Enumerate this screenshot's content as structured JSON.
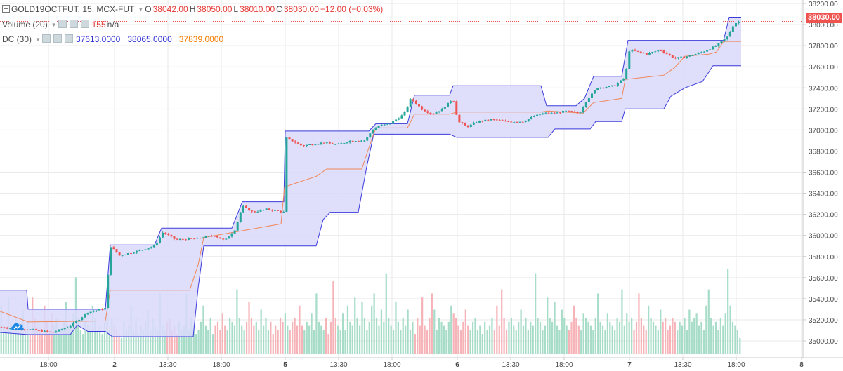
{
  "legend": {
    "symbol": "GOLD19OCTFUT, 15, MCX-FUT",
    "open_label": "O",
    "open_value": "38042.00",
    "high_label": "H",
    "high_value": "38050.00",
    "low_label": "L",
    "low_value": "38010.00",
    "close_label": "C",
    "close_value": "38030.00",
    "change": "−12.00 (−0.03%)",
    "volume_label": "Volume (20)",
    "volume_value": "155",
    "volume_na": "n/a",
    "dc_label": "DC (30)",
    "dc_lower": "37613.0000",
    "dc_upper": "38065.0000",
    "dc_basis": "37839.0000"
  },
  "last_price_tag": "38030.00",
  "colors": {
    "up": "#26a69a",
    "down": "#ef5350",
    "channel_line": "#3b3bdb",
    "channel_fill": "#d9d9fb",
    "basis": "#f0875a",
    "volume_up": "#a6dcc8",
    "volume_down": "#f6b3b8",
    "grid": "#e9e9e9",
    "axis_text": "#4a4a4a"
  },
  "chart_data": {
    "type": "candlestick",
    "ylim": [
      34940,
      38260
    ],
    "y_ticks": [
      "38200.00",
      "38000.00",
      "37800.00",
      "37600.00",
      "37400.00",
      "37200.00",
      "37000.00",
      "36800.00",
      "36600.00",
      "36400.00",
      "36200.00",
      "36000.00",
      "35800.00",
      "35600.00",
      "35400.00",
      "35200.00",
      "35000.00"
    ],
    "x_ticks": [
      "18:00",
      "2",
      "13:30",
      "18:00",
      "5",
      "13:30",
      "18:00",
      "6",
      "13:30",
      "18:00",
      "7",
      "13:30",
      "18:00",
      "8"
    ],
    "price_path": [
      [
        0,
        35130
      ],
      [
        40,
        35110
      ],
      [
        75,
        35080
      ],
      [
        100,
        35140
      ],
      [
        125,
        35270
      ],
      [
        150,
        35310
      ],
      [
        157,
        35900
      ],
      [
        170,
        35810
      ],
      [
        195,
        35850
      ],
      [
        220,
        35900
      ],
      [
        232,
        36030
      ],
      [
        250,
        35960
      ],
      [
        280,
        35970
      ],
      [
        305,
        36000
      ],
      [
        320,
        35950
      ],
      [
        335,
        36060
      ],
      [
        345,
        36280
      ],
      [
        360,
        36220
      ],
      [
        380,
        36250
      ],
      [
        404,
        36220
      ],
      [
        406,
        36930
      ],
      [
        430,
        36850
      ],
      [
        460,
        36880
      ],
      [
        480,
        36860
      ],
      [
        500,
        36900
      ],
      [
        520,
        36900
      ],
      [
        530,
        37000
      ],
      [
        540,
        37040
      ],
      [
        555,
        37060
      ],
      [
        575,
        37150
      ],
      [
        585,
        37300
      ],
      [
        600,
        37200
      ],
      [
        615,
        37150
      ],
      [
        630,
        37200
      ],
      [
        645,
        37300
      ],
      [
        652,
        37080
      ],
      [
        665,
        37030
      ],
      [
        680,
        37080
      ],
      [
        700,
        37100
      ],
      [
        720,
        37080
      ],
      [
        745,
        37080
      ],
      [
        760,
        37130
      ],
      [
        775,
        37160
      ],
      [
        790,
        37160
      ],
      [
        805,
        37180
      ],
      [
        825,
        37160
      ],
      [
        835,
        37280
      ],
      [
        850,
        37400
      ],
      [
        875,
        37420
      ],
      [
        890,
        37500
      ],
      [
        896,
        37760
      ],
      [
        920,
        37720
      ],
      [
        940,
        37760
      ],
      [
        960,
        37680
      ],
      [
        980,
        37700
      ],
      [
        1000,
        37740
      ],
      [
        1020,
        37800
      ],
      [
        1035,
        37880
      ],
      [
        1045,
        38010
      ],
      [
        1053,
        38030
      ]
    ],
    "donchian": {
      "upper": [
        [
          0,
          35480
        ],
        [
          38,
          35480
        ],
        [
          40,
          35300
        ],
        [
          150,
          35300
        ],
        [
          157,
          35910
        ],
        [
          220,
          35910
        ],
        [
          230,
          36070
        ],
        [
          330,
          36070
        ],
        [
          345,
          36320
        ],
        [
          404,
          36320
        ],
        [
          406,
          36990
        ],
        [
          525,
          36990
        ],
        [
          535,
          37060
        ],
        [
          580,
          37060
        ],
        [
          590,
          37330
        ],
        [
          640,
          37330
        ],
        [
          645,
          37420
        ],
        [
          770,
          37420
        ],
        [
          778,
          37230
        ],
        [
          820,
          37230
        ],
        [
          832,
          37300
        ],
        [
          845,
          37510
        ],
        [
          885,
          37510
        ],
        [
          894,
          37850
        ],
        [
          1030,
          37850
        ],
        [
          1038,
          38070
        ],
        [
          1055,
          38070
        ]
      ],
      "lower": [
        [
          0,
          35080
        ],
        [
          40,
          35060
        ],
        [
          100,
          35060
        ],
        [
          110,
          35150
        ],
        [
          125,
          35090
        ],
        [
          150,
          35090
        ],
        [
          160,
          35040
        ],
        [
          275,
          35040
        ],
        [
          282,
          35500
        ],
        [
          290,
          35900
        ],
        [
          450,
          35900
        ],
        [
          460,
          36150
        ],
        [
          470,
          36220
        ],
        [
          510,
          36220
        ],
        [
          522,
          36650
        ],
        [
          532,
          36960
        ],
        [
          560,
          36960
        ],
        [
          600,
          36960
        ],
        [
          640,
          36960
        ],
        [
          650,
          36930
        ],
        [
          780,
          36930
        ],
        [
          790,
          37010
        ],
        [
          840,
          37010
        ],
        [
          848,
          37080
        ],
        [
          885,
          37080
        ],
        [
          890,
          37200
        ],
        [
          945,
          37200
        ],
        [
          955,
          37320
        ],
        [
          975,
          37400
        ],
        [
          1000,
          37460
        ],
        [
          1015,
          37610
        ],
        [
          1055,
          37610
        ]
      ],
      "basis": [
        [
          0,
          35280
        ],
        [
          40,
          35180
        ],
        [
          150,
          35190
        ],
        [
          157,
          35480
        ],
        [
          270,
          35480
        ],
        [
          282,
          35720
        ],
        [
          290,
          35980
        ],
        [
          400,
          36110
        ],
        [
          405,
          36460
        ],
        [
          450,
          36560
        ],
        [
          465,
          36630
        ],
        [
          515,
          36630
        ],
        [
          525,
          36830
        ],
        [
          535,
          37020
        ],
        [
          580,
          37020
        ],
        [
          590,
          37150
        ],
        [
          640,
          37150
        ],
        [
          650,
          37170
        ],
        [
          770,
          37170
        ],
        [
          780,
          37180
        ],
        [
          830,
          37160
        ],
        [
          845,
          37260
        ],
        [
          885,
          37300
        ],
        [
          890,
          37480
        ],
        [
          945,
          37520
        ],
        [
          960,
          37590
        ],
        [
          975,
          37700
        ],
        [
          1010,
          37720
        ],
        [
          1020,
          37740
        ],
        [
          1030,
          37840
        ],
        [
          1055,
          37840
        ]
      ]
    },
    "volume": [
      120,
      70,
      60,
      140,
      80,
      50,
      90,
      60,
      70,
      110,
      60,
      80,
      50,
      140,
      90,
      70,
      60,
      50,
      120,
      80,
      60,
      100,
      70,
      90,
      50,
      60,
      80,
      130,
      70,
      60,
      100,
      190,
      90,
      60,
      50,
      80,
      70,
      60,
      120,
      90,
      60,
      70,
      50,
      80,
      110,
      60,
      90,
      70,
      60,
      50,
      40,
      80,
      60,
      70,
      120,
      60,
      90,
      50,
      70,
      60,
      80,
      110,
      60,
      90,
      70,
      60,
      150,
      70,
      60,
      80,
      90,
      60,
      70,
      50,
      80,
      60,
      70,
      150,
      60,
      90,
      70,
      50,
      60,
      80,
      120,
      70,
      60,
      90,
      50,
      70,
      80,
      60,
      100,
      70,
      60,
      90,
      80,
      70,
      160,
      90,
      70,
      60,
      80,
      130,
      90,
      70,
      80,
      60,
      110,
      70,
      90,
      60,
      80,
      50,
      70,
      60,
      90,
      80,
      100,
      70,
      60,
      80,
      90,
      70,
      120,
      70,
      60,
      80,
      70,
      100,
      60,
      150,
      80,
      70,
      60,
      90,
      50,
      80,
      180,
      90,
      70,
      60,
      100,
      60,
      120,
      80,
      70,
      140,
      90,
      70,
      130,
      90,
      60,
      80,
      120,
      150,
      90,
      70,
      110,
      80,
      200,
      90,
      70,
      60,
      130,
      80,
      60,
      90,
      70,
      110,
      60,
      80,
      50,
      90,
      70,
      140,
      70,
      60,
      90,
      150,
      110,
      60,
      90,
      80,
      70,
      60,
      80,
      120,
      100,
      90,
      70,
      60,
      80,
      110,
      70,
      60,
      80,
      90,
      60,
      70,
      50,
      80,
      60,
      70,
      90,
      60,
      120,
      70,
      160,
      90,
      60,
      80,
      90,
      70,
      60,
      80,
      110,
      70,
      90,
      60,
      80,
      70,
      200,
      90,
      80,
      60,
      70,
      140,
      90,
      80,
      130,
      70,
      60,
      110,
      90,
      70,
      60,
      80,
      120,
      90,
      70,
      60,
      100,
      90,
      80,
      70,
      60,
      90,
      150,
      80,
      70,
      60,
      100,
      80,
      70,
      60,
      90,
      80,
      160,
      70,
      100,
      80,
      90,
      60,
      80,
      150,
      90,
      70,
      60,
      120,
      90,
      80,
      70,
      60,
      110,
      80,
      90,
      60,
      70,
      90,
      80,
      60,
      80,
      70,
      90,
      60,
      110,
      80,
      90,
      100,
      70,
      80,
      60,
      120,
      160,
      90,
      70,
      80,
      60,
      90,
      70,
      100,
      210,
      120,
      80,
      70,
      60,
      40
    ],
    "volume_ylim": [
      0,
      220
    ],
    "last_price": 38030
  }
}
